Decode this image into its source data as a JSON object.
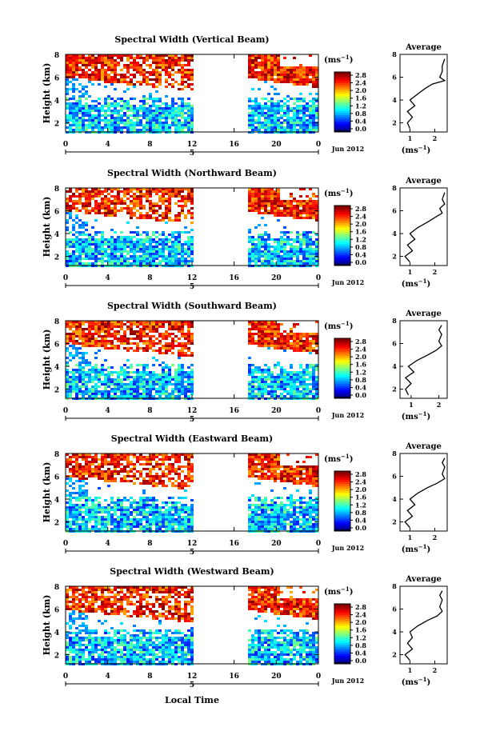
{
  "figure": {
    "x_axis_title": "Local Time",
    "colorbar_unit_label": "(ms",
    "colorbar_unit_exp": "−1",
    "date_label": "Jun 2012",
    "day_label": "5",
    "avg_title": "Average",
    "avg_xlabel": "(ms",
    "y_label": "Height (km)"
  },
  "chart_data": [
    {
      "type": "heatmap",
      "title": "Spectral Width (Vertical Beam)",
      "xlabel": "Local Time",
      "ylabel": "Height (km)",
      "xlim": [
        0,
        24
      ],
      "ylim": [
        1.2,
        8
      ],
      "x_ticks": [
        "0",
        "4",
        "8",
        "12",
        "16",
        "20",
        "0"
      ],
      "y_ticks": [
        "2",
        "4",
        "6",
        "8"
      ],
      "data_gap_hours": [
        12,
        17.2
      ],
      "colorbar": {
        "ticks": [
          "0.0",
          "0.4",
          "0.8",
          "1.2",
          "1.6",
          "2.0",
          "2.4",
          "2.8"
        ],
        "range": [
          0,
          2.8
        ],
        "colormap": "jet"
      },
      "average_profile": {
        "title": "Average",
        "xlabel": "(ms−1)",
        "x_ticks": [
          "1",
          "2"
        ],
        "y_ticks": [
          "2",
          "4",
          "6",
          "8"
        ],
        "xlim": [
          0.6,
          2.5
        ],
        "ylim": [
          1.2,
          8
        ],
        "points": [
          [
            1.0,
            1.5
          ],
          [
            0.9,
            2.0
          ],
          [
            1.1,
            2.5
          ],
          [
            0.9,
            3.0
          ],
          [
            1.2,
            3.5
          ],
          [
            1.0,
            4.0
          ],
          [
            1.3,
            4.5
          ],
          [
            1.6,
            5.0
          ],
          [
            1.9,
            5.4
          ],
          [
            2.4,
            5.7
          ],
          [
            2.2,
            6.0
          ],
          [
            2.3,
            6.5
          ],
          [
            2.3,
            7.0
          ],
          [
            2.4,
            7.6
          ]
        ]
      }
    },
    {
      "type": "heatmap",
      "title": "Spectral Width (Northward Beam)",
      "xlabel": "Local Time",
      "ylabel": "Height (km)",
      "xlim": [
        0,
        24
      ],
      "ylim": [
        1.2,
        8
      ],
      "x_ticks": [
        "0",
        "4",
        "8",
        "12",
        "16",
        "20",
        "0"
      ],
      "y_ticks": [
        "2",
        "4",
        "6",
        "8"
      ],
      "data_gap_hours": [
        12,
        17.2
      ],
      "colorbar": {
        "ticks": [
          "0.0",
          "0.4",
          "0.8",
          "1.2",
          "1.6",
          "2.0",
          "2.4",
          "2.8"
        ],
        "range": [
          0,
          2.8
        ],
        "colormap": "jet"
      },
      "average_profile": {
        "title": "Average",
        "xlabel": "(ms−1)",
        "x_ticks": [
          "1",
          "2"
        ],
        "y_ticks": [
          "2",
          "4",
          "6",
          "8"
        ],
        "xlim": [
          0.6,
          2.5
        ],
        "ylim": [
          1.2,
          8
        ],
        "points": [
          [
            1.0,
            1.5
          ],
          [
            0.8,
            2.0
          ],
          [
            1.1,
            2.5
          ],
          [
            0.9,
            3.0
          ],
          [
            1.2,
            3.5
          ],
          [
            1.0,
            4.0
          ],
          [
            1.3,
            4.5
          ],
          [
            1.7,
            5.0
          ],
          [
            2.0,
            5.4
          ],
          [
            2.3,
            5.8
          ],
          [
            2.2,
            6.2
          ],
          [
            2.4,
            6.6
          ],
          [
            2.3,
            7.0
          ],
          [
            2.4,
            7.6
          ]
        ]
      }
    },
    {
      "type": "heatmap",
      "title": "Spectral Width (Southward Beam)",
      "xlabel": "Local Time",
      "ylabel": "Height (km)",
      "xlim": [
        0,
        24
      ],
      "ylim": [
        1.2,
        8
      ],
      "x_ticks": [
        "0",
        "4",
        "8",
        "12",
        "16",
        "20",
        "0"
      ],
      "y_ticks": [
        "2",
        "4",
        "6",
        "8"
      ],
      "data_gap_hours": [
        12,
        17.2
      ],
      "colorbar": {
        "ticks": [
          "0.0",
          "0.4",
          "0.8",
          "1.2",
          "1.6",
          "2.0",
          "2.4",
          "2.8"
        ],
        "range": [
          0,
          2.8
        ],
        "colormap": "jet"
      },
      "average_profile": {
        "title": "Average",
        "xlabel": "(ms−1)",
        "x_ticks": [
          "1",
          "2"
        ],
        "y_ticks": [
          "2",
          "4",
          "6",
          "8"
        ],
        "xlim": [
          0.6,
          2.3
        ],
        "ylim": [
          1.2,
          8
        ],
        "points": [
          [
            0.9,
            1.5
          ],
          [
            0.8,
            2.0
          ],
          [
            1.0,
            2.5
          ],
          [
            0.8,
            3.0
          ],
          [
            1.1,
            3.5
          ],
          [
            0.9,
            4.0
          ],
          [
            1.2,
            4.5
          ],
          [
            1.6,
            5.0
          ],
          [
            1.9,
            5.4
          ],
          [
            2.1,
            5.8
          ],
          [
            2.0,
            6.2
          ],
          [
            2.1,
            6.8
          ],
          [
            2.0,
            7.2
          ],
          [
            2.1,
            7.6
          ]
        ]
      }
    },
    {
      "type": "heatmap",
      "title": "Spectral Width (Eastward Beam)",
      "xlabel": "Local Time",
      "ylabel": "Height (km)",
      "xlim": [
        0,
        24
      ],
      "ylim": [
        1.2,
        8
      ],
      "x_ticks": [
        "0",
        "4",
        "8",
        "12",
        "16",
        "20",
        "0"
      ],
      "y_ticks": [
        "2",
        "4",
        "6",
        "8"
      ],
      "data_gap_hours": [
        12,
        17.2
      ],
      "colorbar": {
        "ticks": [
          "0.0",
          "0.4",
          "0.8",
          "1.2",
          "1.6",
          "2.0",
          "2.4",
          "2.8"
        ],
        "range": [
          0,
          2.8
        ],
        "colormap": "jet"
      },
      "average_profile": {
        "title": "Average",
        "xlabel": "(ms−1)",
        "x_ticks": [
          "1",
          "2"
        ],
        "y_ticks": [
          "2",
          "4",
          "6",
          "8"
        ],
        "xlim": [
          0.6,
          2.5
        ],
        "ylim": [
          1.2,
          8
        ],
        "points": [
          [
            1.0,
            1.5
          ],
          [
            0.8,
            2.0
          ],
          [
            1.1,
            2.5
          ],
          [
            0.9,
            3.0
          ],
          [
            1.2,
            3.5
          ],
          [
            1.0,
            4.0
          ],
          [
            1.3,
            4.5
          ],
          [
            1.7,
            5.0
          ],
          [
            2.1,
            5.4
          ],
          [
            2.4,
            5.8
          ],
          [
            2.3,
            6.2
          ],
          [
            2.4,
            6.8
          ],
          [
            2.3,
            7.2
          ],
          [
            2.4,
            7.6
          ]
        ]
      }
    },
    {
      "type": "heatmap",
      "title": "Spectral Width (Westward Beam)",
      "xlabel": "Local Time",
      "ylabel": "Height (km)",
      "xlim": [
        0,
        24
      ],
      "ylim": [
        1.2,
        8
      ],
      "x_ticks": [
        "0",
        "4",
        "8",
        "12",
        "16",
        "20",
        "0"
      ],
      "y_ticks": [
        "2",
        "4",
        "6",
        "8"
      ],
      "data_gap_hours": [
        12,
        17.2
      ],
      "colorbar": {
        "ticks": [
          "0.0",
          "0.4",
          "0.8",
          "1.2",
          "1.6",
          "2.0",
          "2.4",
          "2.8"
        ],
        "range": [
          0,
          2.8
        ],
        "colormap": "jet"
      },
      "average_profile": {
        "title": "Average",
        "xlabel": "(ms−1)",
        "x_ticks": [
          "1",
          "2"
        ],
        "y_ticks": [
          "2",
          "4",
          "6",
          "8"
        ],
        "xlim": [
          0.6,
          2.5
        ],
        "ylim": [
          1.2,
          8
        ],
        "points": [
          [
            1.0,
            1.5
          ],
          [
            0.8,
            2.0
          ],
          [
            1.1,
            2.5
          ],
          [
            0.9,
            3.0
          ],
          [
            1.1,
            3.5
          ],
          [
            1.0,
            4.0
          ],
          [
            1.3,
            4.5
          ],
          [
            1.7,
            5.0
          ],
          [
            2.1,
            5.4
          ],
          [
            2.3,
            5.8
          ],
          [
            2.2,
            6.2
          ],
          [
            2.3,
            6.8
          ],
          [
            2.2,
            7.2
          ],
          [
            2.3,
            7.6
          ]
        ]
      }
    }
  ]
}
